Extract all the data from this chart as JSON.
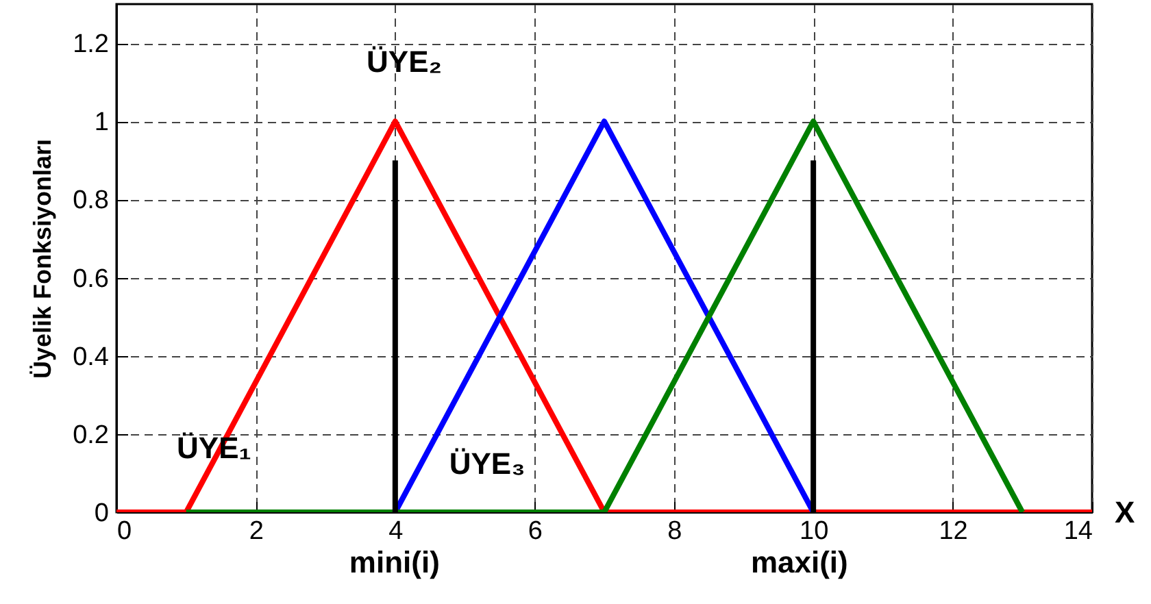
{
  "chart_data": {
    "type": "line",
    "ylabel": "Üyelik Fonksiyonları",
    "xlabel": "X",
    "xlim": [
      0,
      14
    ],
    "xticks": [
      0,
      2,
      4,
      6,
      8,
      10,
      12,
      14
    ],
    "ylim": [
      0,
      1.3
    ],
    "yticks": [
      {
        "value": 0,
        "label": "0"
      },
      0.2,
      0.4,
      0.6,
      0.8,
      {
        "value": 1,
        "label": "1"
      },
      1.2
    ],
    "grid": true,
    "line_style": "solid",
    "marker": "none",
    "series": [
      {
        "color": "#ff0000",
        "x": [
          0,
          1,
          4,
          7,
          14
        ],
        "values": [
          0,
          0,
          1,
          0,
          0
        ]
      },
      {
        "color": "#0000ff",
        "x": [
          4,
          7,
          10
        ],
        "values": [
          0,
          1,
          0
        ]
      },
      {
        "color": "#008000",
        "x": [
          1,
          7,
          10,
          13
        ],
        "values": [
          0,
          0,
          1,
          0
        ]
      },
      {
        "color": "#000000",
        "x": [
          4,
          4
        ],
        "values": [
          0,
          0.9
        ]
      },
      {
        "color": "#000000",
        "x": [
          10,
          10
        ],
        "values": [
          0,
          0.9
        ]
      }
    ],
    "annotations": [
      "ÜYE₁",
      "ÜYE₂",
      "ÜYE₃",
      "mini(i)",
      "maxi(i)"
    ]
  }
}
